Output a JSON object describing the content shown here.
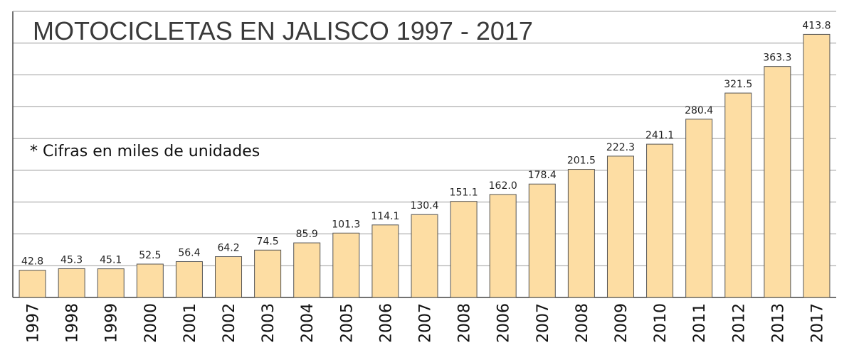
{
  "chart_data": {
    "type": "bar",
    "title": "MOTOCICLETAS EN JALISCO 1997 - 2017",
    "note": "* Cifras en miles de unidades",
    "categories": [
      "1997",
      "1998",
      "1999",
      "2000",
      "2001",
      "2002",
      "2003",
      "2004",
      "2005",
      "2006",
      "2007",
      "2008",
      "2006",
      "2007",
      "2008",
      "2009",
      "2010",
      "2011",
      "2012",
      "2013",
      "2017"
    ],
    "value_labels": [
      "42.8",
      "45.3",
      "45.1",
      "52.5",
      "56.4",
      "64.2",
      "74.5",
      "85.9",
      "101.3",
      "114.1",
      "130.4",
      "151.1",
      "162.0",
      "178.4",
      "201.5",
      "222.3",
      "241.1",
      "280.4",
      "321.5",
      "363.3",
      "413.8"
    ],
    "values": [
      42.8,
      45.3,
      45.1,
      52.5,
      56.4,
      64.2,
      74.5,
      85.9,
      101.3,
      114.1,
      130.4,
      151.1,
      162.0,
      178.4,
      201.5,
      222.3,
      241.1,
      280.4,
      321.5,
      363.3,
      413.8
    ],
    "ylim": [
      0,
      450
    ],
    "grid": true,
    "xlabel": "",
    "ylabel": "",
    "colors": {
      "bar_fill": "#fddda3",
      "bar_stroke": "#555555",
      "grid": "#9a9a9a",
      "frame": "#444444",
      "title": "#3a3a3a"
    }
  }
}
